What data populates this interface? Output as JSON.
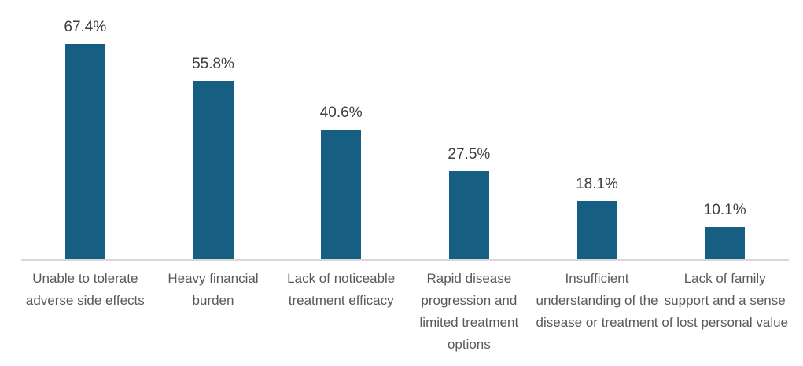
{
  "chart_data": {
    "type": "bar",
    "categories": [
      "Unable to tolerate adverse side effects",
      "Heavy financial burden",
      "Lack of noticeable treatment efficacy",
      "Rapid disease progression and limited treatment options",
      "Insufficient understanding of the disease or treatment",
      "Lack of family support and a sense of lost personal value"
    ],
    "values": [
      67.4,
      55.8,
      40.6,
      27.5,
      18.1,
      10.1
    ],
    "value_labels": [
      "67.4%",
      "55.8%",
      "40.6%",
      "27.5%",
      "18.1%",
      "10.1%"
    ],
    "title": "",
    "xlabel": "",
    "ylabel": "",
    "ylim": [
      0,
      70
    ],
    "grid": false,
    "legend": false,
    "bar_color": "#165f82",
    "axis_line_color": "#d9d9d9",
    "data_label_color": "#3f3f3f",
    "category_label_color": "#595959"
  }
}
